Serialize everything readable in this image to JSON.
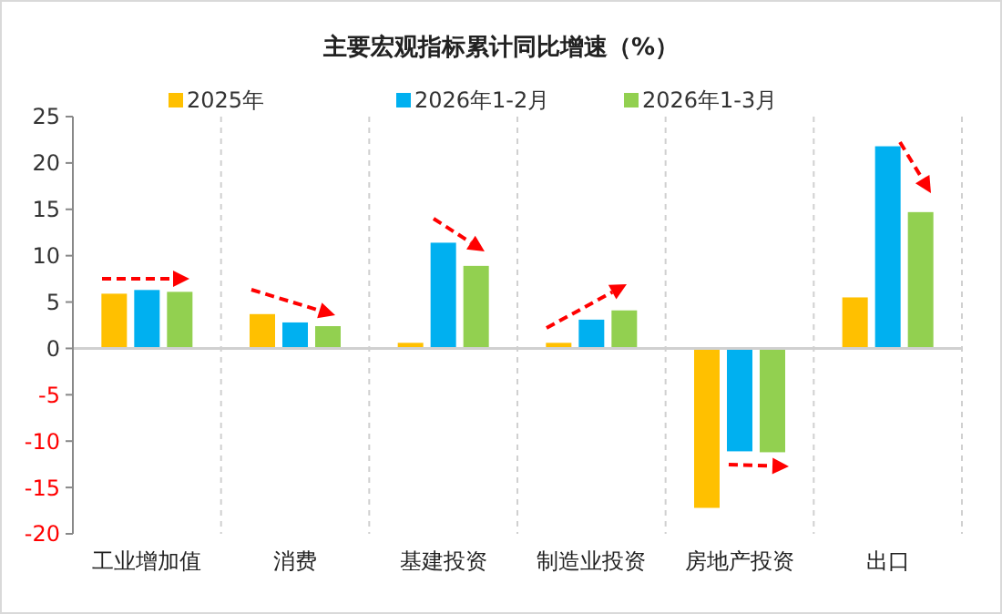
{
  "chart_data": {
    "type": "bar",
    "title": "主要宏观指标累计同比增速（%）",
    "categories": [
      "工业增加值",
      "消费",
      "基建投资",
      "制造业投资",
      "房地产投资",
      "出口"
    ],
    "series": [
      {
        "name": "2025年",
        "color": "#ffc000",
        "values": [
          5.9,
          3.7,
          0.6,
          0.6,
          -17.2,
          5.5
        ]
      },
      {
        "name": "2026年1-2月",
        "color": "#00b0f0",
        "values": [
          6.3,
          2.8,
          11.4,
          3.1,
          -11.1,
          21.8
        ]
      },
      {
        "name": "2026年1-3月",
        "color": "#92d050",
        "values": [
          6.1,
          2.4,
          8.9,
          4.1,
          -11.2,
          14.7
        ]
      }
    ],
    "ylim": [
      -20,
      25
    ],
    "yticks": [
      -20,
      -15,
      -10,
      -5,
      0,
      5,
      10,
      15,
      20,
      25
    ],
    "grid": "x",
    "legend": "top"
  }
}
